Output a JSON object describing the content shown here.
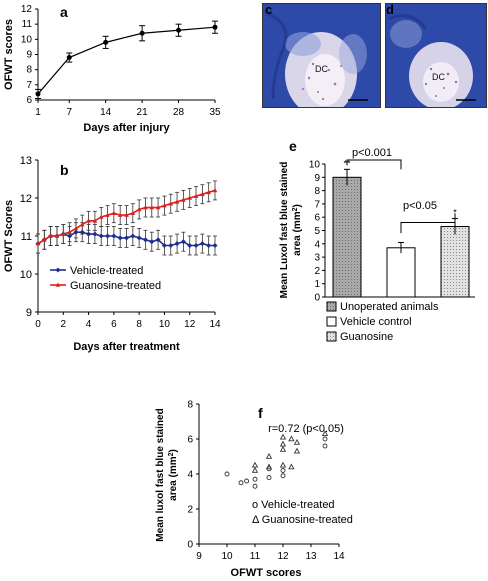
{
  "figure": {
    "panel_labels": {
      "a": "a",
      "b": "b",
      "c": "c",
      "d": "d",
      "e": "e",
      "f": "f"
    },
    "micrograph_labels": {
      "c": "DC",
      "d": "DC"
    },
    "colors": {
      "vehicle": "#1f2f8f",
      "guanosine": "#d8231f",
      "micro_bg": "#2e4aa8",
      "micro_light": "#e9e2f0"
    }
  },
  "chart_data": [
    {
      "id": "a",
      "type": "line",
      "xlabel": "Days after injury",
      "ylabel": "OFWT scores",
      "x": [
        1,
        7,
        14,
        21,
        28,
        35
      ],
      "xticks": [
        "1",
        "7",
        "14",
        "21",
        "28",
        "35"
      ],
      "ylim": [
        6,
        12
      ],
      "yticks": [
        "6",
        "7",
        "8",
        "9",
        "10",
        "11",
        "12"
      ],
      "series": [
        {
          "values": [
            6.4,
            8.8,
            9.8,
            10.4,
            10.6,
            10.8
          ],
          "errors": [
            0.3,
            0.3,
            0.4,
            0.5,
            0.4,
            0.4
          ]
        }
      ]
    },
    {
      "id": "b",
      "type": "line",
      "xlabel": "Days after treatment",
      "ylabel": "OFWT Scores",
      "x": [
        0,
        0.5,
        1,
        1.5,
        2,
        2.5,
        3,
        3.5,
        4,
        4.5,
        5,
        5.5,
        6,
        6.5,
        7,
        7.5,
        8,
        8.5,
        9,
        9.5,
        10,
        10.5,
        11,
        11.5,
        12,
        12.5,
        13,
        13.5,
        14
      ],
      "xticks": [
        "0",
        "2",
        "4",
        "6",
        "8",
        "10",
        "12",
        "14"
      ],
      "ylim": [
        9,
        13
      ],
      "yticks": [
        "9",
        "10",
        "11",
        "12",
        "13"
      ],
      "legend": "bottom-left",
      "series": [
        {
          "name": "Vehicle-treated",
          "values": [
            10.8,
            10.9,
            11.0,
            11.0,
            11.05,
            11.0,
            11.1,
            11.1,
            11.05,
            11.05,
            11.0,
            11.0,
            11.0,
            10.95,
            10.95,
            11.0,
            10.95,
            10.9,
            10.85,
            10.9,
            10.75,
            10.75,
            10.8,
            10.85,
            10.75,
            10.75,
            10.8,
            10.75,
            10.75
          ],
          "errors": 0.25
        },
        {
          "name": "Guanosine-treated",
          "values": [
            10.8,
            10.9,
            11.0,
            11.0,
            11.05,
            11.1,
            11.2,
            11.3,
            11.4,
            11.4,
            11.5,
            11.55,
            11.6,
            11.55,
            11.55,
            11.6,
            11.7,
            11.75,
            11.75,
            11.75,
            11.8,
            11.85,
            11.9,
            11.95,
            12.0,
            12.05,
            12.1,
            12.15,
            12.2
          ],
          "errors": 0.25
        }
      ]
    },
    {
      "id": "e",
      "type": "bar",
      "ylabel_line1": "Mean Luxol fast blue stained",
      "ylabel_line2": "area (mm",
      "ylabel_sup": "2",
      "ylabel_close": ")",
      "categories": [
        "Unoperated animals",
        "Vehicle control",
        "Guanosine"
      ],
      "values": [
        9.0,
        3.7,
        5.3
      ],
      "errors": [
        0.6,
        0.4,
        0.6
      ],
      "ylim": [
        0,
        10
      ],
      "yticks": [
        "0",
        "1",
        "2",
        "3",
        "4",
        "5",
        "6",
        "7",
        "8",
        "9",
        "10"
      ],
      "significance": [
        "**",
        "",
        "*"
      ],
      "brackets": [
        {
          "text": "p<0.001"
        },
        {
          "text": "p<0.05"
        }
      ],
      "legend_items": [
        "Unoperated animals",
        "Vehicle control",
        "Guanosine"
      ]
    },
    {
      "id": "f",
      "type": "scatter",
      "xlabel": "OFWT scores",
      "ylabel_line1": "Mean luxol fast blue stained",
      "ylabel_line2": "area (mm",
      "ylabel_sup": "2",
      "ylabel_close": ")",
      "annotation": "r=0.72 (p<0.05)",
      "xlim": [
        9,
        14
      ],
      "ylim": [
        0,
        8
      ],
      "xticks": [
        "9",
        "10",
        "11",
        "12",
        "13",
        "14"
      ],
      "yticks": [
        "0",
        "2",
        "4",
        "6",
        "8"
      ],
      "series": [
        {
          "name": "Vehicle-treated",
          "marker": "o",
          "legend_text": "o Vehicle-treated",
          "points": [
            [
              10,
              4.0
            ],
            [
              10.5,
              3.5
            ],
            [
              10.7,
              3.6
            ],
            [
              11,
              3.3
            ],
            [
              11,
              3.7
            ],
            [
              11.5,
              4.3
            ],
            [
              12,
              4.2
            ],
            [
              12,
              3.9
            ],
            [
              11.5,
              3.8
            ],
            [
              13.5,
              6.0
            ],
            [
              13.5,
              5.6
            ]
          ]
        },
        {
          "name": "Guanosine-treated",
          "marker": "triangle",
          "legend_text": "Δ Guanosine-treated",
          "points": [
            [
              11,
              4.5
            ],
            [
              11,
              4.2
            ],
            [
              11.5,
              5.0
            ],
            [
              11.5,
              4.4
            ],
            [
              12,
              6.1
            ],
            [
              12,
              5.7
            ],
            [
              12,
              5.4
            ],
            [
              12,
              4.5
            ],
            [
              12.3,
              6.0
            ],
            [
              12.3,
              4.4
            ],
            [
              12.5,
              5.3
            ],
            [
              12.5,
              5.8
            ],
            [
              13.5,
              6.3
            ]
          ]
        }
      ]
    }
  ]
}
